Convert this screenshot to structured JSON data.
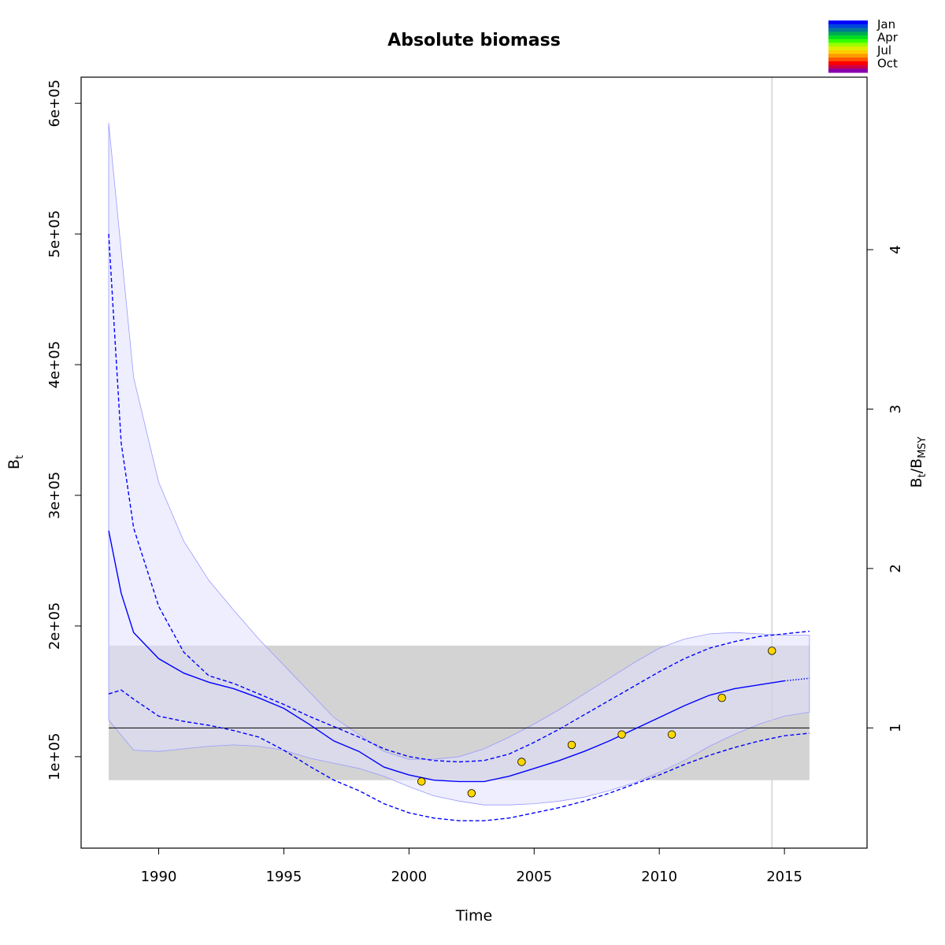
{
  "chart_data": {
    "type": "line",
    "title": "Absolute biomass",
    "xlabel": "Time",
    "ylabel": {
      "main": "B",
      "sub": "t"
    },
    "ylabel_right": {
      "b": "B",
      "t": "t",
      "slash": "/",
      "b2": "B",
      "msy": "MSY"
    },
    "xlim": [
      1986.9,
      2018.3
    ],
    "ylim": [
      30000,
      620000
    ],
    "x_ticks": [
      1990,
      1995,
      2000,
      2005,
      2010,
      2015
    ],
    "x_tick_labels": [
      "1990",
      "1995",
      "2000",
      "2005",
      "2010",
      "2015"
    ],
    "y_ticks": [
      100000,
      200000,
      300000,
      400000,
      500000,
      600000
    ],
    "y_tick_labels": [
      "1e+05",
      "2e+05",
      "3e+05",
      "4e+05",
      "5e+05",
      "6e+05"
    ],
    "right_axis": {
      "bmsy": 122000,
      "ticks": [
        1,
        2,
        3,
        4
      ],
      "tick_labels": [
        "1",
        "2",
        "3",
        "4"
      ]
    },
    "bmsy_band": {
      "x": [
        1988,
        2016
      ],
      "y": [
        82000,
        185000
      ],
      "color": "#d3d3d3"
    },
    "ci_band": {
      "color": "#e0e0fe",
      "x": [
        1988,
        1989,
        1990,
        1991,
        1992,
        1993,
        1994,
        1995,
        1996,
        1997,
        1998,
        1999,
        2000,
        2001,
        2002,
        2003,
        2004,
        2005,
        2006,
        2007,
        2008,
        2009,
        2010,
        2011,
        2012,
        2013,
        2014,
        2015,
        2016
      ],
      "upper": [
        585000,
        390000,
        310000,
        265000,
        235000,
        212000,
        190000,
        170000,
        150000,
        130000,
        117000,
        104000,
        98000,
        98000,
        100000,
        106000,
        115000,
        125000,
        136000,
        148000,
        160000,
        172000,
        183000,
        190000,
        194000,
        195000,
        194000,
        193000,
        193000
      ],
      "lower": [
        128000,
        105000,
        104000,
        106000,
        108000,
        109000,
        108000,
        105000,
        99000,
        95000,
        91000,
        85000,
        77000,
        70000,
        66000,
        63000,
        63000,
        64000,
        66000,
        69000,
        74000,
        80000,
        88000,
        97000,
        108000,
        117000,
        125000,
        131000,
        134000
      ]
    },
    "series": [
      {
        "color": "#0000ff",
        "dash": "solid",
        "x": [
          1988,
          1988.5,
          1989,
          1990,
          1991,
          1992,
          1993,
          1994,
          1995,
          1996,
          1997,
          1998,
          1999,
          2000,
          2001,
          2002,
          2003,
          2004,
          2005,
          2006,
          2007,
          2008,
          2009,
          2010,
          2011,
          2012,
          2013,
          2014,
          2015
        ],
        "values": [
          273000,
          225000,
          195000,
          175000,
          164000,
          157000,
          152000,
          145000,
          137000,
          125000,
          112000,
          104000,
          92000,
          86000,
          82000,
          81000,
          81000,
          85000,
          91000,
          97000,
          104000,
          112000,
          121000,
          130000,
          139000,
          147000,
          152000,
          155000,
          158000
        ]
      },
      {
        "color": "#0000ff",
        "dash": "dotted",
        "x": [
          2015,
          2016
        ],
        "values": [
          158000,
          160000
        ]
      },
      {
        "color": "#0000ff",
        "dash": "dashed",
        "x": [
          1988,
          1988.5,
          1989,
          1990,
          1991,
          1992,
          1993,
          1994,
          1995,
          1996,
          1997,
          1998,
          1999,
          2000,
          2001,
          2002,
          2003,
          2004,
          2005,
          2006,
          2007,
          2008,
          2009,
          2010,
          2011,
          2012,
          2013,
          2014,
          2015,
          2016
        ],
        "values": [
          500000,
          340000,
          275000,
          215000,
          180000,
          162000,
          156000,
          148000,
          140000,
          131000,
          123000,
          115000,
          106000,
          100000,
          97000,
          96000,
          97000,
          102000,
          111000,
          121000,
          132000,
          143000,
          154000,
          165000,
          175000,
          183000,
          188000,
          192000,
          194000,
          196000
        ]
      },
      {
        "color": "#0000ff",
        "dash": "dashed",
        "x": [
          1988,
          1988.5,
          1989,
          1990,
          1991,
          1992,
          1993,
          1994,
          1995,
          1996,
          1997,
          1998,
          1999,
          2000,
          2001,
          2002,
          2003,
          2004,
          2005,
          2006,
          2007,
          2008,
          2009,
          2010,
          2011,
          2012,
          2013,
          2014,
          2015,
          2016
        ],
        "values": [
          148000,
          151000,
          144000,
          131000,
          127000,
          124000,
          120000,
          115000,
          105000,
          93000,
          82000,
          74000,
          64000,
          57000,
          53000,
          51000,
          51000,
          53000,
          57000,
          61000,
          66000,
          72000,
          79000,
          86000,
          94000,
          101000,
          107000,
          112000,
          116000,
          118000
        ]
      }
    ],
    "observations": {
      "fill": "#ffd700",
      "stroke": "#000000",
      "x": [
        2000.5,
        2002.5,
        2004.5,
        2006.5,
        2008.5,
        2010.5,
        2012.5,
        2014.5
      ],
      "values": [
        81000,
        72000,
        96000,
        109000,
        117000,
        117000,
        145000,
        181000
      ]
    },
    "hline": {
      "y": 122000,
      "color": "#000000"
    },
    "vline": {
      "x": 2014.5,
      "color": "#d3d3d3"
    },
    "legend": {
      "placement": "top-right",
      "labels": [
        "Jan",
        "Apr",
        "Jul",
        "Oct"
      ],
      "colors": [
        "#0000ff",
        "#0044dd",
        "#007799",
        "#00aa55",
        "#00dd22",
        "#33ff00",
        "#99ff00",
        "#ddee00",
        "#ffcc00",
        "#ff9900",
        "#ff5500",
        "#ff0000",
        "#cc0044",
        "#8800aa"
      ]
    }
  }
}
